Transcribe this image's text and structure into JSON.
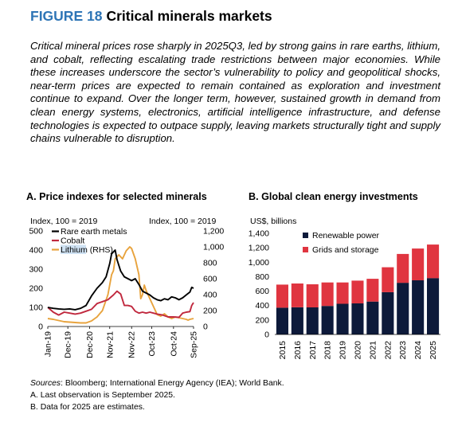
{
  "figure": {
    "label": "FIGURE 18",
    "title": "Critical minerals markets",
    "intro": "Critical mineral prices rose sharply in 2025Q3, led by strong gains in rare earths, lithium, and cobalt, reflecting escalating trade restrictions between major economies. While these increases underscore the sector’s vulnerability to policy and geopolitical shocks, near-term prices are expected to remain contained as exploration and investment continue to expand. Over the longer term, however, sustained growth in demand from clean energy systems, electronics, artificial intelligence infrastructure, and defense technologies is expected to outpace supply, leaving markets structurally tight and supply chains vulnerable to disruption."
  },
  "notes": {
    "sources_label": "Sources",
    "sources_text": ": Bloomberg; International Energy Agency (IEA); World Bank.",
    "note_a": "A. Last observation is September 2025.",
    "note_b": "B. Data for 2025 are estimates."
  },
  "colors": {
    "rare_earth": "#000000",
    "cobalt": "#c0283e",
    "lithium": "#e8a33d",
    "renewable": "#0d1a3a",
    "grids": "#e03540",
    "accent": "#2e75b6"
  },
  "chart_data": [
    {
      "type": "line",
      "title": "A. Price indexes for selected minerals",
      "left_axis_label": "Index, 100 = 2019",
      "right_axis_label": "Index, 100 = 2019",
      "ylim_left": [
        0,
        500
      ],
      "ylim_right": [
        0,
        1200
      ],
      "yticks_left": [
        0,
        100,
        200,
        300,
        400,
        500
      ],
      "yticks_right": [
        0,
        200,
        400,
        600,
        800,
        1000,
        1200
      ],
      "x_ticks": [
        "Jan-19",
        "Dec-19",
        "Dec-20",
        "Nov-21",
        "Nov-22",
        "Oct-23",
        "Oct-24",
        "Sep-25"
      ],
      "x_tick_dates": [
        "2019-01",
        "2019-12",
        "2020-12",
        "2021-11",
        "2022-11",
        "2023-10",
        "2024-10",
        "2025-09"
      ],
      "legend": [
        "Rare earth metals",
        "Cobalt",
        "Lithium (RHS)"
      ],
      "series": [
        {
          "name": "Rare earth metals",
          "axis": "left",
          "points": [
            [
              "2019-01",
              100
            ],
            [
              "2019-04",
              95
            ],
            [
              "2019-07",
              92
            ],
            [
              "2019-10",
              90
            ],
            [
              "2020-01",
              92
            ],
            [
              "2020-04",
              88
            ],
            [
              "2020-07",
              95
            ],
            [
              "2020-10",
              110
            ],
            [
              "2021-01",
              160
            ],
            [
              "2021-04",
              200
            ],
            [
              "2021-07",
              230
            ],
            [
              "2021-09",
              260
            ],
            [
              "2021-11",
              330
            ],
            [
              "2021-12",
              380
            ],
            [
              "2022-02",
              400
            ],
            [
              "2022-03",
              350
            ],
            [
              "2022-05",
              290
            ],
            [
              "2022-07",
              260
            ],
            [
              "2022-09",
              250
            ],
            [
              "2022-11",
              240
            ],
            [
              "2023-01",
              250
            ],
            [
              "2023-03",
              220
            ],
            [
              "2023-05",
              185
            ],
            [
              "2023-07",
              175
            ],
            [
              "2023-09",
              165
            ],
            [
              "2023-11",
              150
            ],
            [
              "2024-01",
              140
            ],
            [
              "2024-03",
              135
            ],
            [
              "2024-05",
              145
            ],
            [
              "2024-07",
              140
            ],
            [
              "2024-09",
              155
            ],
            [
              "2024-11",
              150
            ],
            [
              "2025-01",
              140
            ],
            [
              "2025-03",
              150
            ],
            [
              "2025-05",
              165
            ],
            [
              "2025-07",
              180
            ],
            [
              "2025-08",
              205
            ],
            [
              "2025-09",
              200
            ]
          ]
        },
        {
          "name": "Cobalt",
          "axis": "left",
          "points": [
            [
              "2019-01",
              100
            ],
            [
              "2019-04",
              75
            ],
            [
              "2019-07",
              60
            ],
            [
              "2019-10",
              75
            ],
            [
              "2020-01",
              70
            ],
            [
              "2020-04",
              65
            ],
            [
              "2020-07",
              70
            ],
            [
              "2020-10",
              80
            ],
            [
              "2021-01",
              90
            ],
            [
              "2021-04",
              120
            ],
            [
              "2021-07",
              130
            ],
            [
              "2021-10",
              140
            ],
            [
              "2022-01",
              165
            ],
            [
              "2022-03",
              185
            ],
            [
              "2022-05",
              170
            ],
            [
              "2022-07",
              110
            ],
            [
              "2022-09",
              110
            ],
            [
              "2022-11",
              105
            ],
            [
              "2023-01",
              80
            ],
            [
              "2023-03",
              70
            ],
            [
              "2023-05",
              75
            ],
            [
              "2023-07",
              70
            ],
            [
              "2023-09",
              75
            ],
            [
              "2023-11",
              70
            ],
            [
              "2024-01",
              65
            ],
            [
              "2024-04",
              60
            ],
            [
              "2024-07",
              50
            ],
            [
              "2024-10",
              50
            ],
            [
              "2025-01",
              48
            ],
            [
              "2025-03",
              70
            ],
            [
              "2025-05",
              75
            ],
            [
              "2025-07",
              78
            ],
            [
              "2025-08",
              110
            ],
            [
              "2025-09",
              125
            ]
          ]
        },
        {
          "name": "Lithium (RHS)",
          "axis": "right",
          "points": [
            [
              "2019-01",
              100
            ],
            [
              "2019-04",
              90
            ],
            [
              "2019-07",
              75
            ],
            [
              "2019-10",
              60
            ],
            [
              "2020-01",
              55
            ],
            [
              "2020-04",
              50
            ],
            [
              "2020-07",
              45
            ],
            [
              "2020-10",
              45
            ],
            [
              "2021-01",
              70
            ],
            [
              "2021-04",
              120
            ],
            [
              "2021-07",
              200
            ],
            [
              "2021-10",
              400
            ],
            [
              "2021-12",
              650
            ],
            [
              "2022-01",
              700
            ],
            [
              "2022-02",
              850
            ],
            [
              "2022-04",
              900
            ],
            [
              "2022-06",
              850
            ],
            [
              "2022-08",
              950
            ],
            [
              "2022-10",
              1000
            ],
            [
              "2022-11",
              980
            ],
            [
              "2023-01",
              850
            ],
            [
              "2023-03",
              650
            ],
            [
              "2023-04",
              350
            ],
            [
              "2023-05",
              400
            ],
            [
              "2023-06",
              520
            ],
            [
              "2023-07",
              450
            ],
            [
              "2023-09",
              350
            ],
            [
              "2023-11",
              250
            ],
            [
              "2024-01",
              150
            ],
            [
              "2024-03",
              130
            ],
            [
              "2024-05",
              160
            ],
            [
              "2024-07",
              120
            ],
            [
              "2024-09",
              100
            ],
            [
              "2024-11",
              120
            ],
            [
              "2025-01",
              110
            ],
            [
              "2025-03",
              100
            ],
            [
              "2025-05",
              90
            ],
            [
              "2025-06",
              80
            ],
            [
              "2025-07",
              90
            ],
            [
              "2025-09",
              100
            ]
          ]
        }
      ]
    },
    {
      "type": "bar",
      "stacked": true,
      "title": "B. Global clean energy investments",
      "ylabel": "US$, billions",
      "ylim": [
        0,
        1400
      ],
      "yticks": [
        0,
        200,
        400,
        600,
        800,
        1000,
        1200,
        1400
      ],
      "categories": [
        "2015",
        "2016",
        "2017",
        "2018",
        "2019",
        "2020",
        "2021",
        "2022",
        "2023",
        "2024",
        "2025"
      ],
      "series": [
        {
          "name": "Renewable power",
          "values": [
            370,
            375,
            375,
            395,
            425,
            430,
            455,
            585,
            715,
            750,
            780
          ]
        },
        {
          "name": "Grids and storage",
          "values": [
            320,
            330,
            320,
            325,
            295,
            315,
            315,
            345,
            400,
            440,
            465
          ]
        }
      ]
    }
  ]
}
